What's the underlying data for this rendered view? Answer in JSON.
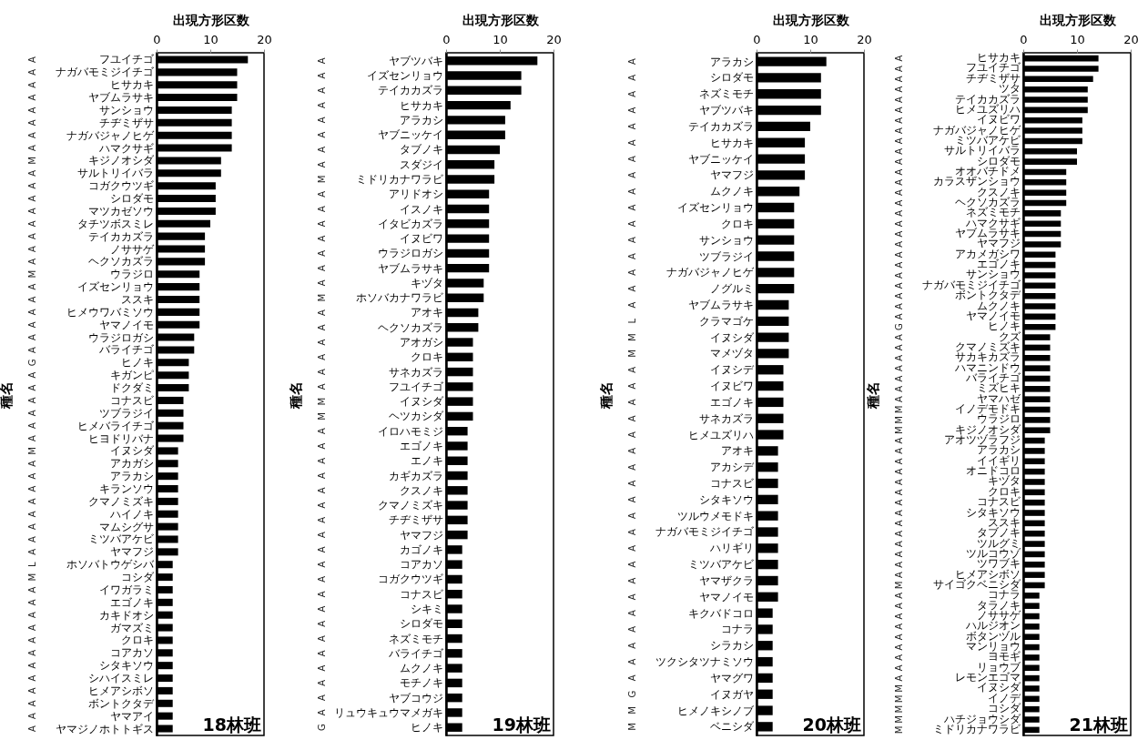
{
  "chart_data": [
    {
      "type": "bar",
      "orientation": "horizontal",
      "xlabel": "出現方形区数",
      "ylabel": "種名",
      "annotations": [
        "18林班"
      ],
      "color": "#000000",
      "xlim": [
        0,
        20
      ],
      "xticks": [
        0,
        10,
        20
      ],
      "categories": [
        "フユイチゴ",
        "ナガバモミジイチゴ",
        "ヒサカキ",
        "ヤブムラサキ",
        "サンショウ",
        "チヂミザサ",
        "ナガバジャノヒゲ",
        "ハマクサギ",
        "キジノオシダ",
        "サルトリイバラ",
        "コガクウツギ",
        "シロダモ",
        "マツカゼソウ",
        "タチツボスミレ",
        "テイカカズラ",
        "ノササゲ",
        "ヘクソカズラ",
        "ウラジロ",
        "イズセンリョウ",
        "ススキ",
        "ヒメウワバミソウ",
        "ヤマノイモ",
        "ウラジロガシ",
        "バライチゴ",
        "ヒノキ",
        "キガンピ",
        "ドクダミ",
        "コナスビ",
        "ツブラジイ",
        "ヒメバライチゴ",
        "ヒヨドリバナ",
        "イヌシダ",
        "アカガシ",
        "アラカシ",
        "キランソウ",
        "クマノミズキ",
        "ハイノキ",
        "マムシグサ",
        "ミツバアケビ",
        "ヤマフジ",
        "ホソバトウゲシバ",
        "コシダ",
        "イワガラミ",
        "エゴノキ",
        "カキドオシ",
        "ガマズミ",
        "クロキ",
        "コアカソ",
        "シタキソウ",
        "シハイスミレ",
        "ヒメアシボソ",
        "ボントクタデ",
        "ヤマアイ",
        "ヤマジノホトトギス"
      ],
      "y2_categories": [
        "A",
        "A",
        "A",
        "A",
        "A",
        "A",
        "A",
        "A",
        "M",
        "A",
        "A",
        "A",
        "A",
        "A",
        "A",
        "A",
        "A",
        "M",
        "A",
        "A",
        "A",
        "A",
        "A",
        "A",
        "G",
        "A",
        "A",
        "A",
        "A",
        "A",
        "A",
        "M",
        "A",
        "A",
        "A",
        "A",
        "A",
        "A",
        "A",
        "A",
        "L",
        "M",
        "A",
        "A",
        "A",
        "A",
        "A",
        "A",
        "A",
        "A",
        "A",
        "A",
        "A",
        "A"
      ],
      "values": [
        17,
        15,
        15,
        15,
        14,
        14,
        14,
        14,
        12,
        12,
        11,
        11,
        11,
        10,
        9,
        9,
        9,
        8,
        8,
        8,
        8,
        8,
        7,
        7,
        6,
        6,
        6,
        5,
        5,
        5,
        5,
        4,
        4,
        4,
        4,
        4,
        4,
        4,
        4,
        4,
        3,
        3,
        3,
        3,
        3,
        3,
        3,
        3,
        3,
        3,
        3,
        3,
        3,
        3
      ]
    },
    {
      "type": "bar",
      "orientation": "horizontal",
      "xlabel": "出現方形区数",
      "ylabel": "種名",
      "annotations": [
        "19林班"
      ],
      "color": "#000000",
      "xlim": [
        0,
        20
      ],
      "xticks": [
        0,
        10,
        20
      ],
      "categories": [
        "ヤブツバキ",
        "イズセンリョウ",
        "テイカカズラ",
        "ヒサカキ",
        "アラカシ",
        "ヤブニッケイ",
        "タブノキ",
        "スダジイ",
        "ミドリカナワラビ",
        "アリドオシ",
        "イスノキ",
        "イタビカズラ",
        "イヌビワ",
        "ウラジロガシ",
        "ヤブムラサキ",
        "キヅタ",
        "ホソバカナワラビ",
        "アオキ",
        "ヘクソカズラ",
        "アオガシ",
        "クロキ",
        "サネカズラ",
        "フユイチゴ",
        "イヌシダ",
        "ヘツカシダ",
        "イロハモミジ",
        "エゴノキ",
        "エノキ",
        "カギカズラ",
        "クスノキ",
        "クマノミズキ",
        "チヂミザサ",
        "ヤマフジ",
        "カゴノキ",
        "コアカソ",
        "コガクウツギ",
        "コナスビ",
        "シキミ",
        "シロダモ",
        "ネズミモチ",
        "バライチゴ",
        "ムクノキ",
        "モチノキ",
        "ヤブコウジ",
        "リュウキュウマメガキ",
        "ヒノキ"
      ],
      "y2_categories": [
        "A",
        "A",
        "A",
        "A",
        "A",
        "A",
        "A",
        "A",
        "M",
        "A",
        "A",
        "A",
        "A",
        "A",
        "A",
        "A",
        "M",
        "A",
        "A",
        "A",
        "A",
        "A",
        "A",
        "M",
        "M",
        "A",
        "A",
        "A",
        "A",
        "A",
        "A",
        "A",
        "A",
        "A",
        "A",
        "A",
        "A",
        "A",
        "A",
        "A",
        "A",
        "A",
        "A",
        "A",
        "A",
        "G"
      ],
      "values": [
        17,
        14,
        14,
        12,
        11,
        11,
        10,
        9,
        9,
        8,
        8,
        8,
        8,
        8,
        8,
        7,
        7,
        6,
        6,
        5,
        5,
        5,
        5,
        5,
        5,
        4,
        4,
        4,
        4,
        4,
        4,
        4,
        4,
        3,
        3,
        3,
        3,
        3,
        3,
        3,
        3,
        3,
        3,
        3,
        3,
        3
      ]
    },
    {
      "type": "bar",
      "orientation": "horizontal",
      "xlabel": "出現方形区数",
      "ylabel": "種名",
      "annotations": [
        "20林班"
      ],
      "color": "#000000",
      "xlim": [
        0,
        20
      ],
      "xticks": [
        0,
        10,
        20
      ],
      "categories": [
        "アラカシ",
        "シロダモ",
        "ネズミモチ",
        "ヤブツバキ",
        "テイカカズラ",
        "ヒサカキ",
        "ヤブニッケイ",
        "ヤマフジ",
        "ムクノキ",
        "イズセンリョウ",
        "クロキ",
        "サンショウ",
        "ツブラジイ",
        "ナガバジャノヒゲ",
        "ノグルミ",
        "ヤブムラサキ",
        "クラマゴケ",
        "イヌシダ",
        "マメヅタ",
        "イヌシデ",
        "イヌビワ",
        "エゴノキ",
        "サネカズラ",
        "ヒメユズリハ",
        "アオキ",
        "アカシデ",
        "コナスビ",
        "シタキソウ",
        "ツルウメモドキ",
        "ナガバモミジイチゴ",
        "ハリギリ",
        "ミツバアケビ",
        "ヤマザクラ",
        "ヤマノイモ",
        "キクバドコロ",
        "コナラ",
        "シラカシ",
        "ツクシタツナミソウ",
        "ヤマグワ",
        "イヌガヤ",
        "ヒメノキシノブ",
        "ベニシダ"
      ],
      "y2_categories": [
        "A",
        "A",
        "A",
        "A",
        "A",
        "A",
        "A",
        "A",
        "A",
        "A",
        "A",
        "A",
        "A",
        "A",
        "A",
        "A",
        "L",
        "M",
        "M",
        "A",
        "A",
        "A",
        "A",
        "A",
        "A",
        "A",
        "A",
        "A",
        "A",
        "A",
        "A",
        "A",
        "A",
        "A",
        "A",
        "A",
        "A",
        "A",
        "A",
        "G",
        "M",
        "M"
      ],
      "values": [
        13,
        12,
        12,
        12,
        10,
        9,
        9,
        9,
        8,
        7,
        7,
        7,
        7,
        7,
        7,
        6,
        6,
        6,
        6,
        5,
        5,
        5,
        5,
        5,
        4,
        4,
        4,
        4,
        4,
        4,
        4,
        4,
        4,
        4,
        3,
        3,
        3,
        3,
        3,
        3,
        3,
        3
      ]
    },
    {
      "type": "bar",
      "orientation": "horizontal",
      "xlabel": "出現方形区数",
      "ylabel": "種名",
      "annotations": [
        "21林班"
      ],
      "color": "#000000",
      "xlim": [
        0,
        20
      ],
      "xticks": [
        0,
        10,
        20
      ],
      "categories": [
        "ヒサカキ",
        "フユイチゴ",
        "チヂミザサ",
        "ツタ",
        "テイカカズラ",
        "ヒメユズリハ",
        "イヌビワ",
        "ナガバジャノヒゲ",
        "ミツバアケビ",
        "サルトリイバラ",
        "シロダモ",
        "オオバチドメ",
        "カラスザンショウ",
        "クスノキ",
        "ヘクソカズラ",
        "ネズミモチ",
        "ハマクサギ",
        "ヤブムラサキ",
        "ヤマフジ",
        "アカメガシワ",
        "エゴノキ",
        "サンショウ",
        "ナガバモミジイチゴ",
        "ボントクタデ",
        "ムクノキ",
        "ヤマノイモ",
        "ヒノキ",
        "クズ",
        "クマノミズキ",
        "サカキカズラ",
        "ハマニンドウ",
        "バライチゴ",
        "ミズヒキ",
        "ヤマハゼ",
        "イノデモドキ",
        "ウラジロ",
        "キジノオシダ",
        "アオツヅラフジ",
        "アラカシ",
        "イイギリ",
        "オニドコロ",
        "キヅタ",
        "クロキ",
        "コナスビ",
        "シタキソウ",
        "ススキ",
        "タブノキ",
        "ツルグミ",
        "ツルコウゾ",
        "ツワブキ",
        "ヒメアシボソ",
        "サイゴクベニシダ",
        "コナラ",
        "タラノキ",
        "ノササゲ",
        "ハルジオン",
        "ボタンヅル",
        "マンリョウ",
        "ヨモギ",
        "リョウブ",
        "レモンエゴマ",
        "イヌシダ",
        "イノデ",
        "コシダ",
        "ハチジョウシダ",
        "ミドリカナワラビ"
      ],
      "y2_categories": [
        "A",
        "A",
        "A",
        "A",
        "A",
        "A",
        "A",
        "A",
        "A",
        "A",
        "A",
        "A",
        "A",
        "A",
        "A",
        "A",
        "A",
        "A",
        "A",
        "A",
        "A",
        "A",
        "A",
        "A",
        "A",
        "A",
        "G",
        "A",
        "A",
        "A",
        "A",
        "A",
        "A",
        "A",
        "M",
        "M",
        "M",
        "A",
        "A",
        "A",
        "A",
        "A",
        "A",
        "A",
        "A",
        "A",
        "A",
        "A",
        "A",
        "A",
        "A",
        "M",
        "A",
        "A",
        "A",
        "A",
        "A",
        "A",
        "A",
        "A",
        "A",
        "M",
        "M",
        "M",
        "M",
        "M"
      ],
      "values": [
        14,
        14,
        13,
        12,
        12,
        12,
        11,
        11,
        11,
        10,
        10,
        8,
        8,
        8,
        8,
        7,
        7,
        7,
        7,
        6,
        6,
        6,
        6,
        6,
        6,
        6,
        6,
        5,
        5,
        5,
        5,
        5,
        5,
        5,
        5,
        5,
        5,
        4,
        4,
        4,
        4,
        4,
        4,
        4,
        4,
        4,
        4,
        4,
        4,
        4,
        4,
        4,
        3,
        3,
        3,
        3,
        3,
        3,
        3,
        3,
        3,
        3,
        3,
        3,
        3,
        3
      ]
    }
  ]
}
